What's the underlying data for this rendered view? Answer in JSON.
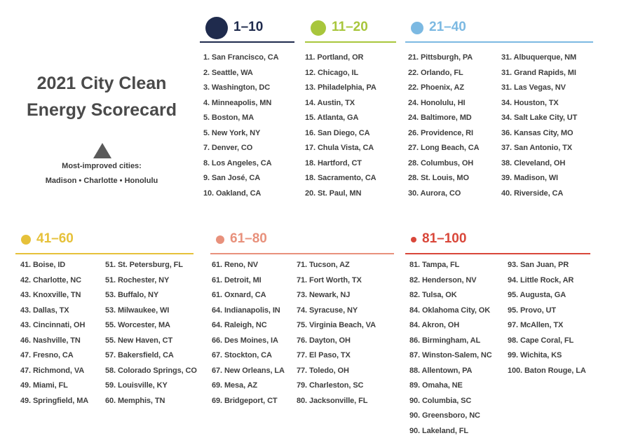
{
  "title": "2021 City Clean Energy Scorecard",
  "most_improved": {
    "label": "Most-improved cities:",
    "cities": "Madison • Charlotte • Honolulu"
  },
  "groups": [
    {
      "label": "1–10",
      "color": "#1f2b4d",
      "columns": [
        [
          "1. San Francisco, CA",
          "2. Seattle, WA",
          "3. Washington, DC",
          "4. Minneapolis, MN",
          "5. Boston, MA",
          "5. New York, NY",
          "7. Denver, CO",
          "8. Los Angeles, CA",
          "9. San José, CA",
          "10. Oakland, CA"
        ]
      ]
    },
    {
      "label": "11–20",
      "color": "#a8c63c",
      "columns": [
        [
          "11. Portland, OR",
          "12. Chicago, IL",
          "13. Philadelphia, PA",
          "14. Austin, TX",
          "15. Atlanta, GA",
          "16. San Diego, CA",
          "17. Chula Vista, CA",
          "18. Hartford, CT",
          "18. Sacramento, CA",
          "20. St. Paul, MN"
        ]
      ]
    },
    {
      "label": "21–40",
      "color": "#7cb9e2",
      "columns": [
        [
          "21. Pittsburgh, PA",
          "22. Orlando, FL",
          "22. Phoenix, AZ",
          "24. Honolulu, HI",
          "24. Baltimore, MD",
          "26. Providence, RI",
          "27. Long Beach, CA",
          "28. Columbus, OH",
          "28. St. Louis, MO",
          "30. Aurora, CO"
        ],
        [
          "31. Albuquerque, NM",
          "31. Grand Rapids, MI",
          "31. Las Vegas, NV",
          "34. Houston, TX",
          "34. Salt Lake City, UT",
          "36. Kansas City, MO",
          "37. San Antonio, TX",
          "38. Cleveland, OH",
          "39. Madison, WI",
          "40. Riverside, CA"
        ]
      ]
    },
    {
      "label": "41–60",
      "color": "#e6c13a",
      "columns": [
        [
          "41. Boise, ID",
          "42. Charlotte, NC",
          "43. Knoxville, TN",
          "43. Dallas, TX",
          "43. Cincinnati, OH",
          "46. Nashville, TN",
          "47. Fresno, CA",
          "47. Richmond, VA",
          "49. Miami, FL",
          "49. Springfield, MA"
        ],
        [
          "51. St. Petersburg, FL",
          "51. Rochester, NY",
          "53. Buffalo, NY",
          "53. Milwaukee, WI",
          "55. Worcester, MA",
          "55. New Haven, CT",
          "57. Bakersfield, CA",
          "58. Colorado Springs, CO",
          "59. Louisville, KY",
          "60. Memphis, TN"
        ]
      ]
    },
    {
      "label": "61–80",
      "color": "#e8917c",
      "columns": [
        [
          "61. Reno, NV",
          "61. Detroit, MI",
          "61. Oxnard, CA",
          "64. Indianapolis, IN",
          "64. Raleigh, NC",
          "66. Des Moines, IA",
          "67. Stockton, CA",
          "67. New Orleans, LA",
          "69. Mesa, AZ",
          "69. Bridgeport, CT"
        ],
        [
          "71. Tucson, AZ",
          "71. Fort Worth, TX",
          "73. Newark, NJ",
          "74. Syracuse, NY",
          "75. Virginia Beach, VA",
          "76. Dayton, OH",
          "77. El Paso, TX",
          "77. Toledo, OH",
          "79. Charleston, SC",
          "80. Jacksonville, FL"
        ]
      ]
    },
    {
      "label": "81–100",
      "color": "#d9473a",
      "columns": [
        [
          "81. Tampa, FL",
          "82. Henderson, NV",
          "82. Tulsa, OK",
          "84. Oklahoma City, OK",
          "84. Akron, OH",
          "86. Birmingham, AL",
          "87. Winston-Salem, NC",
          "88. Allentown, PA",
          "89. Omaha, NE",
          "90. Columbia, SC",
          "90. Greensboro, NC",
          "90. Lakeland, FL"
        ],
        [
          "93. San Juan, PR",
          "94. Little Rock, AR",
          "95. Augusta, GA",
          "95. Provo, UT",
          "97. McAllen, TX",
          "98. Cape Coral, FL",
          "99. Wichita, KS",
          "100. Baton Rouge, LA"
        ]
      ]
    }
  ]
}
